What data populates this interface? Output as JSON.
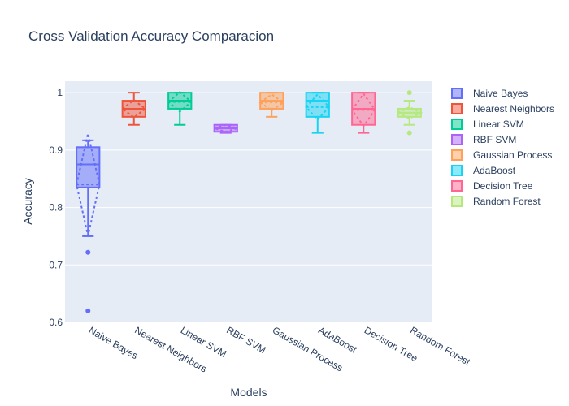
{
  "chart_data": {
    "type": "box",
    "title": "Cross Validation Accuracy Comparacion",
    "xlabel": "Models",
    "ylabel": "Accuracy",
    "ylim": [
      0.6,
      1.02
    ],
    "yticks": [
      0.6,
      0.7,
      0.8,
      0.9,
      1
    ],
    "ytick_labels": [
      "0.6",
      "0.7",
      "0.8",
      "0.9",
      "1"
    ],
    "grid": true,
    "legend_position": "right",
    "boxmean": "sd",
    "series": [
      {
        "name": "Naive Bayes",
        "color": "#636efa",
        "min": 0.75,
        "q1": 0.835,
        "median": 0.875,
        "q3": 0.905,
        "max": 0.917,
        "mean": 0.84,
        "sd": 0.089,
        "outliers": [
          0.722,
          0.62
        ],
        "points": [
          0.917,
          0.912,
          0.905,
          0.9,
          0.875,
          0.86,
          0.84,
          0.835
        ]
      },
      {
        "name": "Nearest Neighbors",
        "color": "#ef553b",
        "min": 0.944,
        "q1": 0.958,
        "median": 0.972,
        "q3": 0.986,
        "max": 1.0,
        "mean": 0.972,
        "sd": 0.015,
        "outliers": [],
        "points": [
          1.0,
          0.986,
          0.972,
          0.965,
          0.958,
          0.944
        ]
      },
      {
        "name": "Linear SVM",
        "color": "#00cc96",
        "min": 0.944,
        "q1": 0.972,
        "median": 0.986,
        "q3": 1.0,
        "max": 1.0,
        "mean": 0.984,
        "sd": 0.017,
        "outliers": [],
        "points": [
          1.0,
          0.993,
          0.986,
          0.972,
          0.965,
          0.944
        ]
      },
      {
        "name": "RBF SVM",
        "color": "#ab63fa",
        "min": 0.93,
        "q1": 0.932,
        "median": 0.938,
        "q3": 0.944,
        "max": 0.944,
        "mean": 0.938,
        "sd": 0.006,
        "outliers": [],
        "points": [
          0.944,
          0.94,
          0.936,
          0.932
        ]
      },
      {
        "name": "Gaussian Process",
        "color": "#ffa15a",
        "min": 0.958,
        "q1": 0.972,
        "median": 0.986,
        "q3": 1.0,
        "max": 1.0,
        "mean": 0.983,
        "sd": 0.014,
        "outliers": [],
        "points": [
          1.0,
          0.993,
          0.986,
          0.979,
          0.972,
          0.958
        ]
      },
      {
        "name": "AdaBoost",
        "color": "#19d3f3",
        "min": 0.93,
        "q1": 0.958,
        "median": 0.986,
        "q3": 1.0,
        "max": 1.0,
        "mean": 0.975,
        "sd": 0.022,
        "outliers": [],
        "points": [
          1.0,
          0.993,
          0.979,
          0.965,
          0.958,
          0.93
        ]
      },
      {
        "name": "Decision Tree",
        "color": "#ff6692",
        "min": 0.93,
        "q1": 0.944,
        "median": 0.972,
        "q3": 1.0,
        "max": 1.0,
        "mean": 0.97,
        "sd": 0.028,
        "outliers": [],
        "points": [
          1.0,
          0.986,
          0.972,
          0.958,
          0.944,
          0.93
        ]
      },
      {
        "name": "Random Forest",
        "color": "#b6e880",
        "min": 0.944,
        "q1": 0.958,
        "median": 0.965,
        "q3": 0.972,
        "max": 0.986,
        "mean": 0.965,
        "sd": 0.01,
        "outliers": [
          1.0,
          0.93
        ],
        "points": [
          0.986,
          0.972,
          0.965,
          0.958,
          0.944
        ]
      }
    ]
  }
}
